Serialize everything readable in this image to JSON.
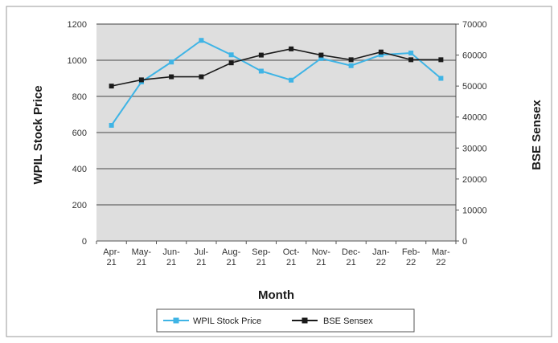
{
  "chart_data": {
    "type": "line",
    "categories": [
      "Apr-21",
      "May-21",
      "Jun-21",
      "Jul-21",
      "Aug-21",
      "Sep-21",
      "Oct-21",
      "Nov-21",
      "Dec-21",
      "Jan-22",
      "Feb-22",
      "Mar-22"
    ],
    "categories_display": [
      [
        "Apr-",
        "21"
      ],
      [
        "May-",
        "21"
      ],
      [
        "Jun-",
        "21"
      ],
      [
        "Jul-",
        "21"
      ],
      [
        "Aug-",
        "21"
      ],
      [
        "Sep-",
        "21"
      ],
      [
        "Oct-",
        "21"
      ],
      [
        "Nov-",
        "21"
      ],
      [
        "Dec-",
        "21"
      ],
      [
        "Jan-",
        "22"
      ],
      [
        "Feb-",
        "22"
      ],
      [
        "Mar-",
        "22"
      ]
    ],
    "xlabel": "Month",
    "ylabel_left": "WPIL Stock Price",
    "ylabel_right": "BSE Sensex",
    "ylim_left": [
      0,
      1200
    ],
    "ylim_right": [
      0,
      70000
    ],
    "yticks_left": [
      "0",
      "200",
      "400",
      "600",
      "800",
      "1000",
      "1200"
    ],
    "yticks_right": [
      "0",
      "10000",
      "20000",
      "30000",
      "40000",
      "50000",
      "60000",
      "70000"
    ],
    "grid": true,
    "legend_position": "bottom-center",
    "series": [
      {
        "name": "WPIL Stock Price",
        "axis": "left",
        "color": "#3fb4e5",
        "marker": "square",
        "values": [
          640,
          880,
          990,
          1110,
          1030,
          940,
          890,
          1010,
          970,
          1030,
          1040,
          900
        ]
      },
      {
        "name": "BSE Sensex",
        "axis": "right",
        "color": "#1a1a1a",
        "marker": "square",
        "values": [
          50000,
          52000,
          53000,
          53000,
          57500,
          60000,
          62000,
          60000,
          58500,
          61000,
          58500,
          58500
        ]
      }
    ]
  },
  "colors": {
    "plot_background": "#dedede",
    "gridline": "#7a7a7a",
    "frame": "#9a9a9a"
  }
}
